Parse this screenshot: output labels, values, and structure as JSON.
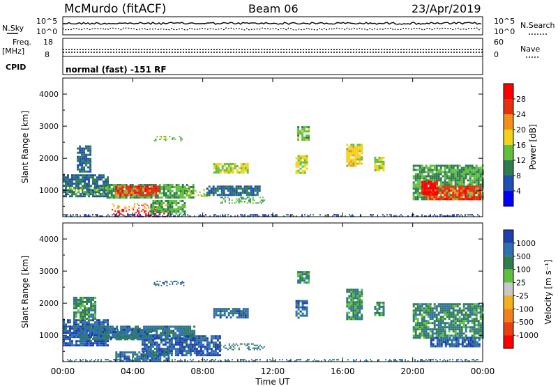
{
  "header": {
    "station": "McMurdo (fitACF)",
    "beam": "Beam 06",
    "date": "23/Apr/2019"
  },
  "summary_panels": {
    "nsky_label": "N.Sky",
    "nsearch_label": "N.Search",
    "noise_ticks": [
      "10^5",
      "10^0"
    ],
    "freq_label_1": "Freq.",
    "freq_label_2": "[MHz]",
    "freq_ticks": [
      "18",
      "8"
    ],
    "nave_label": "Nave",
    "nave_ticks": [
      "60",
      "0"
    ],
    "cpid_label": "CPID",
    "cpid_text": "normal (fast) -151 RF"
  },
  "chart_data": [
    {
      "type": "heatmap",
      "title": "",
      "xlabel": "",
      "ylabel": "Slant Range [km]",
      "xlim": [
        0,
        24
      ],
      "ylim": [
        180,
        4500
      ],
      "xticks": [
        "00:00",
        "04:00",
        "08:00",
        "12:00",
        "16:00",
        "20:00",
        "00:00"
      ],
      "yticks": [
        1000,
        2000,
        3000,
        4000
      ],
      "colorbar": {
        "label": "Power [dB]",
        "ticks": [
          "28",
          "24",
          "20",
          "16",
          "12",
          "8",
          "4"
        ],
        "min": 0,
        "max": 32,
        "colors": [
          "#0000ff",
          "#1f4fb0",
          "#2e7d4f",
          "#5fbf3f",
          "#f2d21a",
          "#f2901a",
          "#e83010",
          "#ff0000"
        ]
      },
      "patches": [
        {
          "t0": 0.0,
          "t1": 2.6,
          "r0": 800,
          "r1": 1500,
          "v": 8
        },
        {
          "t0": 0.2,
          "t1": 2.5,
          "r0": 850,
          "r1": 1100,
          "v": 15
        },
        {
          "t0": 0.8,
          "t1": 1.6,
          "r0": 1600,
          "r1": 2400,
          "v": 8
        },
        {
          "t0": 2.5,
          "t1": 7.5,
          "r0": 800,
          "r1": 1200,
          "v": 12
        },
        {
          "t0": 3.0,
          "t1": 5.5,
          "r0": 850,
          "r1": 1150,
          "v": 26
        },
        {
          "t0": 2.8,
          "t1": 6.0,
          "r0": 450,
          "r1": 600,
          "v": 22
        },
        {
          "t0": 2.8,
          "t1": 6.0,
          "r0": 200,
          "r1": 420,
          "v": 30
        },
        {
          "t0": 5.0,
          "t1": 7.0,
          "r0": 300,
          "r1": 700,
          "v": 12
        },
        {
          "t0": 7.0,
          "t1": 8.5,
          "r0": 800,
          "r1": 1050,
          "v": 16
        },
        {
          "t0": 5.2,
          "t1": 6.9,
          "r0": 2550,
          "r1": 2700,
          "v": 14
        },
        {
          "t0": 8.6,
          "t1": 10.6,
          "r0": 1550,
          "r1": 1850,
          "v": 16
        },
        {
          "t0": 8.2,
          "t1": 11.2,
          "r0": 850,
          "r1": 1150,
          "v": 8
        },
        {
          "t0": 9.0,
          "t1": 11.5,
          "r0": 600,
          "r1": 800,
          "v": 12
        },
        {
          "t0": 13.3,
          "t1": 13.9,
          "r0": 1550,
          "r1": 2100,
          "v": 16
        },
        {
          "t0": 13.4,
          "t1": 14.0,
          "r0": 2550,
          "r1": 3000,
          "v": 14
        },
        {
          "t0": 16.2,
          "t1": 17.1,
          "r0": 1750,
          "r1": 2450,
          "v": 18
        },
        {
          "t0": 17.8,
          "t1": 18.3,
          "r0": 1650,
          "r1": 2050,
          "v": 16
        },
        {
          "t0": 20.0,
          "t1": 24.0,
          "r0": 700,
          "r1": 1800,
          "v": 12
        },
        {
          "t0": 20.7,
          "t1": 23.9,
          "r0": 700,
          "r1": 1150,
          "v": 26
        },
        {
          "t0": 20.5,
          "t1": 21.4,
          "r0": 900,
          "r1": 1300,
          "v": 30
        },
        {
          "t0": 0.0,
          "t1": 24.0,
          "r0": 180,
          "r1": 260,
          "v": 6
        }
      ]
    },
    {
      "type": "heatmap",
      "title": "",
      "xlabel": "Time UT",
      "ylabel": "Slant Range [km]",
      "xlim": [
        0,
        24
      ],
      "ylim": [
        180,
        4500
      ],
      "xticks": [
        "00:00",
        "04:00",
        "08:00",
        "12:00",
        "16:00",
        "20:00",
        "00:00"
      ],
      "yticks": [
        1000,
        2000,
        3000,
        4000
      ],
      "colorbar": {
        "label": "Velocity [m s⁻¹]",
        "ticks": [
          "1000",
          "500",
          "100",
          "25",
          "-25",
          "-100",
          "-500",
          "-1000"
        ],
        "colors": [
          "#1f3fb0",
          "#2e70b0",
          "#2e7d4f",
          "#5fbf3f",
          "#c8c8c8",
          "#f2b01a",
          "#f2801a",
          "#e84010",
          "#ff0000"
        ]
      },
      "patches": [
        {
          "t0": 0.0,
          "t1": 2.6,
          "r0": 700,
          "r1": 1500,
          "v": 2
        },
        {
          "t0": 0.6,
          "t1": 1.8,
          "r0": 1500,
          "r1": 2200,
          "v": 6
        },
        {
          "t0": 1.0,
          "t1": 7.5,
          "r0": 850,
          "r1": 1300,
          "v": 4
        },
        {
          "t0": 2.0,
          "t1": 5.0,
          "r0": 900,
          "r1": 1200,
          "v": 4
        },
        {
          "t0": 4.5,
          "t1": 9.0,
          "r0": 350,
          "r1": 1000,
          "v": 2
        },
        {
          "t0": 3.0,
          "t1": 6.0,
          "r0": 200,
          "r1": 500,
          "v": 3
        },
        {
          "t0": 9.0,
          "t1": 11.5,
          "r0": 550,
          "r1": 750,
          "v": 5
        },
        {
          "t0": 5.2,
          "t1": 6.9,
          "r0": 2550,
          "r1": 2700,
          "v": 3
        },
        {
          "t0": 8.6,
          "t1": 10.6,
          "r0": 1550,
          "r1": 1850,
          "v": 3
        },
        {
          "t0": 13.3,
          "t1": 13.9,
          "r0": 1550,
          "r1": 2100,
          "v": 3
        },
        {
          "t0": 13.4,
          "t1": 14.0,
          "r0": 2650,
          "r1": 3000,
          "v": 6
        },
        {
          "t0": 16.2,
          "t1": 17.1,
          "r0": 1500,
          "r1": 2450,
          "v": 6
        },
        {
          "t0": 17.8,
          "t1": 18.3,
          "r0": 1650,
          "r1": 2050,
          "v": 6
        },
        {
          "t0": 20.0,
          "t1": 24.0,
          "r0": 900,
          "r1": 2000,
          "v": 6
        },
        {
          "t0": 21.0,
          "t1": 23.8,
          "r0": 650,
          "r1": 950,
          "v": 2
        },
        {
          "t0": 0.0,
          "t1": 24.0,
          "r0": 180,
          "r1": 260,
          "v": 4
        }
      ]
    }
  ]
}
